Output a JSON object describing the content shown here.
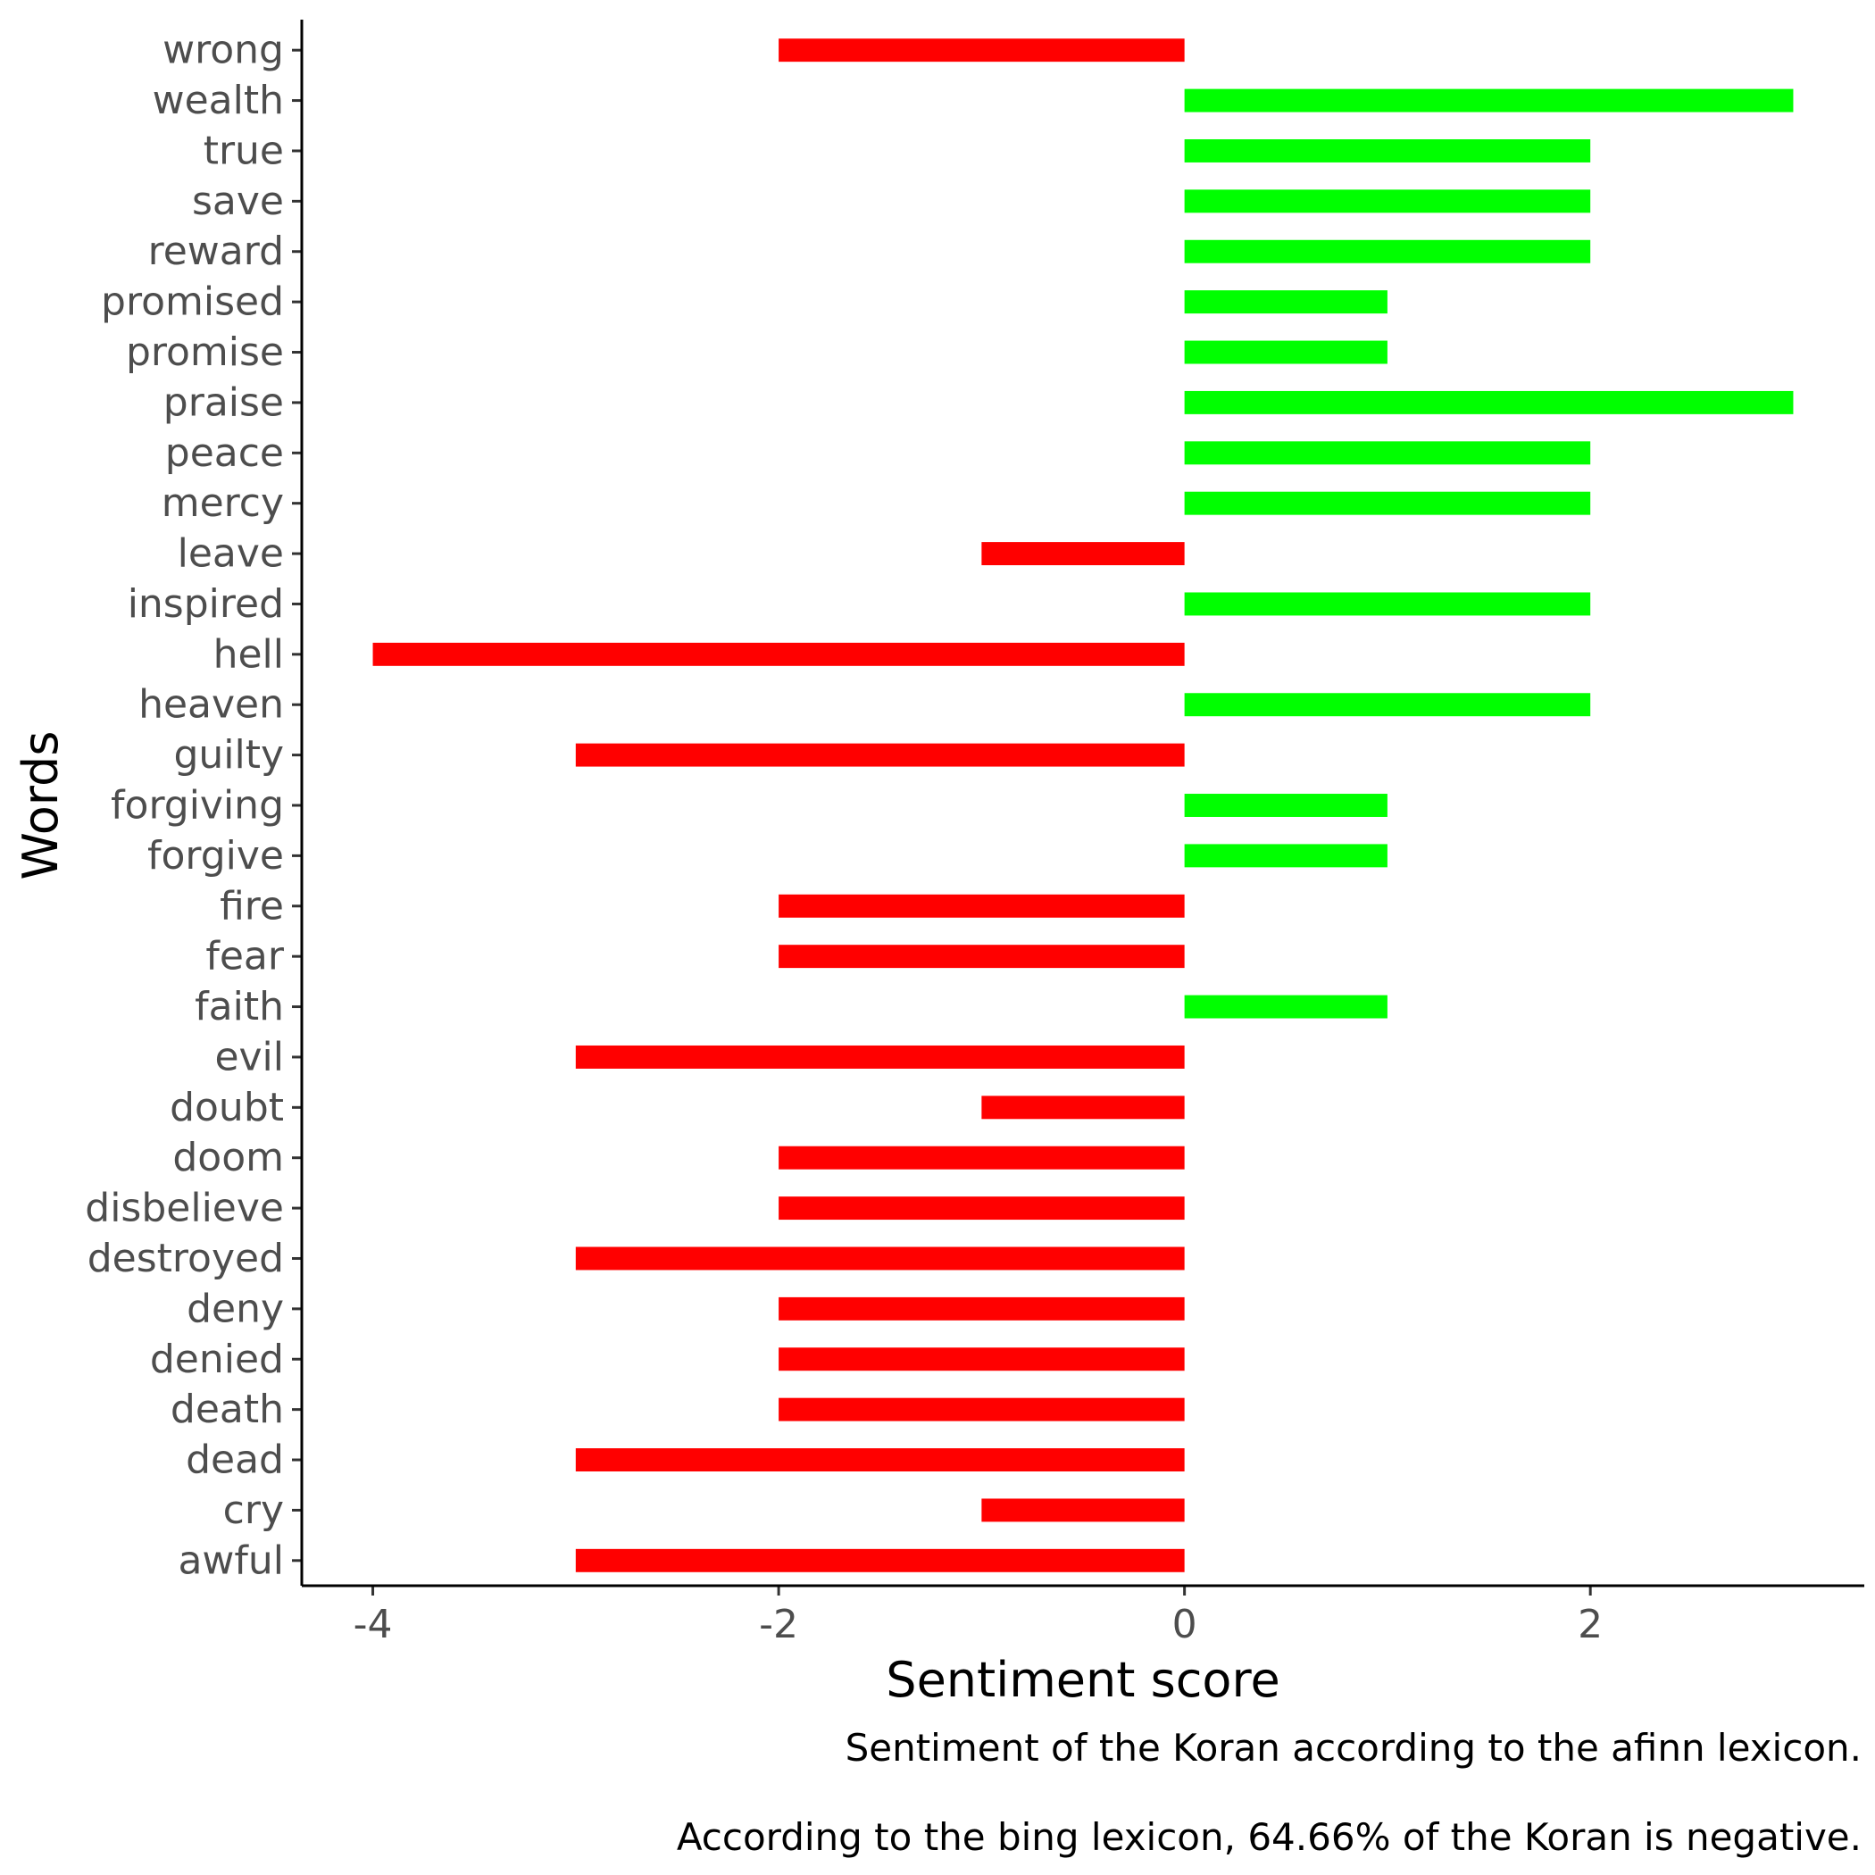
{
  "chart_data": {
    "type": "bar",
    "orientation": "horizontal",
    "categories": [
      "wrong",
      "wealth",
      "true",
      "save",
      "reward",
      "promised",
      "promise",
      "praise",
      "peace",
      "mercy",
      "leave",
      "inspired",
      "hell",
      "heaven",
      "guilty",
      "forgiving",
      "forgive",
      "fire",
      "fear",
      "faith",
      "evil",
      "doubt",
      "doom",
      "disbelieve",
      "destroyed",
      "deny",
      "denied",
      "death",
      "dead",
      "cry",
      "awful"
    ],
    "values": [
      -2,
      3,
      2,
      2,
      2,
      1,
      1,
      3,
      2,
      2,
      -1,
      2,
      -4,
      2,
      -3,
      1,
      1,
      -2,
      -2,
      1,
      -3,
      -1,
      -2,
      -2,
      -3,
      -2,
      -2,
      -2,
      -3,
      -1,
      -3
    ],
    "xlabel": "Sentiment score",
    "ylabel": "Words",
    "xlim": [
      -4.35,
      3.35
    ],
    "xticks": [
      -4,
      -2,
      0,
      2
    ],
    "xtick_labels": [
      "-4",
      "-2",
      "0",
      "2"
    ],
    "grid": false,
    "legend": "none",
    "colors": {
      "positive": "#00ff00",
      "negative": "#ff0000"
    },
    "caption_lines": [
      "Sentiment of the Koran according to the afinn lexicon.",
      "According to the bing lexicon, 64.66% of the Koran is negative."
    ]
  }
}
